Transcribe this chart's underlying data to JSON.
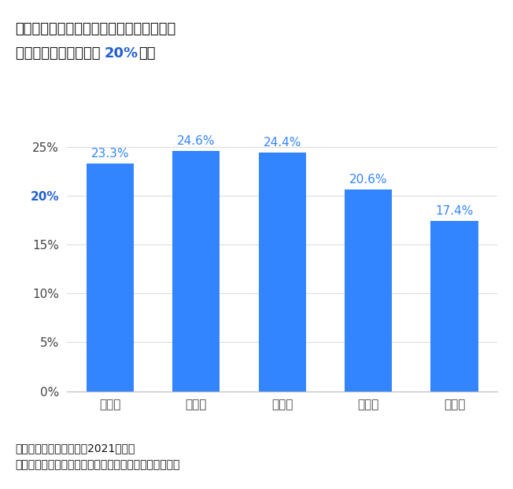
{
  "categories": [
    "１年後",
    "２年後",
    "３年後",
    "４年後",
    "５年後"
  ],
  "values": [
    23.3,
    24.6,
    24.4,
    20.6,
    17.4
  ],
  "bar_color": "#3385FF",
  "label_color": "#3385FF",
  "highlight_ytick_color": "#2060CC",
  "title_line1": "同業平均値と比較した事業承継実施企業の",
  "title_line2_before": "当期純利益成長率は約 ",
  "title_line2_highlight": "20%",
  "title_line2_after": "高い",
  "title_fontsize": 13,
  "bar_label_fontsize": 11,
  "tick_fontsize": 11,
  "ytick_labels": [
    "0%",
    "5%",
    "10%",
    "15%",
    "20%",
    "25%"
  ],
  "ytick_values": [
    0,
    5,
    10,
    15,
    20,
    25
  ],
  "ylim": [
    0,
    28
  ],
  "footnote1": "【資料】中小企業白書（2021）より",
  "footnote2": "（株）東京商工リサーチ「企業情報ファイル」再編加工",
  "footnote_fontsize": 10,
  "background_color": "#ffffff",
  "highlight_ytick": "20%"
}
